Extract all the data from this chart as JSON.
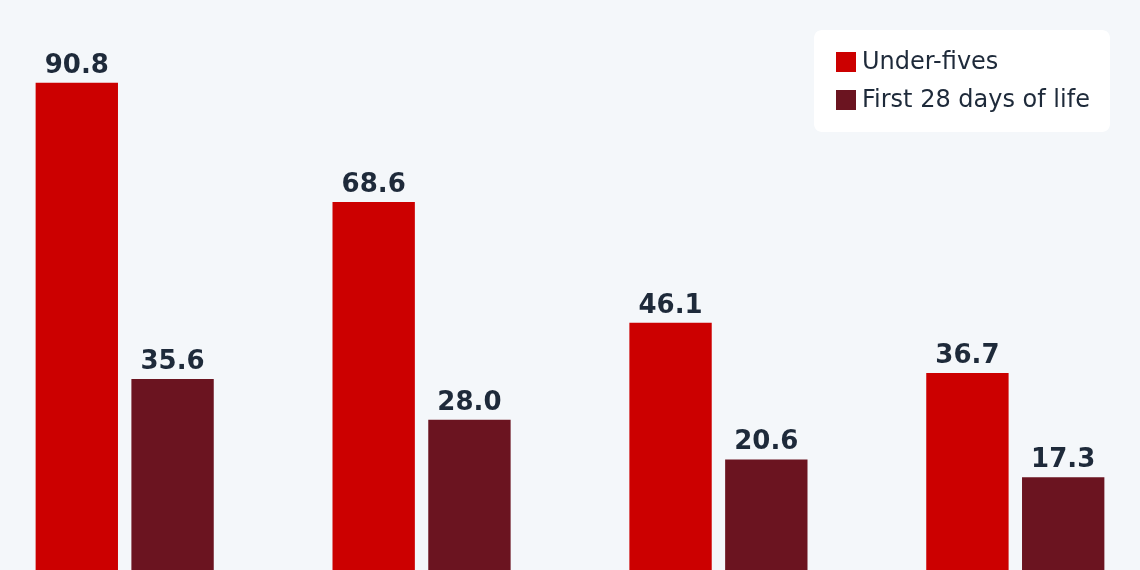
{
  "chart_data": {
    "type": "bar",
    "categories": [
      null,
      null,
      null,
      null
    ],
    "series": [
      {
        "name": "Under-fives",
        "color": "#cc0000",
        "values": [
          90.8,
          68.6,
          46.1,
          36.7
        ],
        "value_labels": [
          "90.8",
          "68.6",
          "46.1",
          "36.7"
        ]
      },
      {
        "name": "First 28 days of life",
        "color": "#6b1420",
        "values": [
          35.6,
          28.0,
          20.6,
          17.3
        ],
        "value_labels": [
          "35.6",
          "28.0",
          "20.6",
          "17.3"
        ]
      }
    ],
    "legend": "top right",
    "grid": false,
    "tick_labels": false
  }
}
